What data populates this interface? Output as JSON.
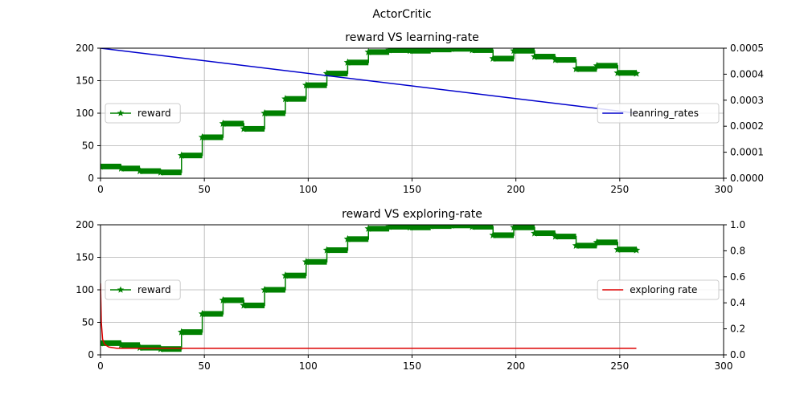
{
  "figure": {
    "suptitle": "ActorCritic"
  },
  "chart_data": [
    {
      "type": "line",
      "title": "reward VS learning-rate",
      "xlabel": "",
      "ylabel": "",
      "xlim": [
        0,
        300
      ],
      "ylim": [
        0,
        200
      ],
      "y2lim": [
        0,
        0.0005
      ],
      "xticks": [
        "0",
        "50",
        "100",
        "150",
        "200",
        "250",
        "300"
      ],
      "yticks": [
        "0",
        "50",
        "100",
        "150",
        "200"
      ],
      "y2ticks": [
        "0.0000",
        "0.0001",
        "0.0002",
        "0.0003",
        "0.0004",
        "0.0005"
      ],
      "grid": true,
      "series": [
        {
          "name": "reward",
          "axis": "left",
          "color": "#008000",
          "marker": "star",
          "steps": [
            [
              0,
              18
            ],
            [
              10,
              15
            ],
            [
              19,
              11
            ],
            [
              29,
              9
            ],
            [
              39,
              35
            ],
            [
              49,
              63
            ],
            [
              59,
              84
            ],
            [
              69,
              76
            ],
            [
              79,
              100
            ],
            [
              89,
              122
            ],
            [
              99,
              143
            ],
            [
              109,
              161
            ],
            [
              119,
              178
            ],
            [
              129,
              194
            ],
            [
              139,
              197
            ],
            [
              149,
              196
            ],
            [
              159,
              198
            ],
            [
              169,
              199
            ],
            [
              179,
              197
            ],
            [
              189,
              184
            ],
            [
              199,
              196
            ],
            [
              209,
              187
            ],
            [
              219,
              182
            ],
            [
              229,
              168
            ],
            [
              239,
              173
            ],
            [
              249,
              162
            ],
            [
              258,
              161
            ]
          ]
        },
        {
          "name": "leanring_rates",
          "axis": "right",
          "color": "#0000cc",
          "x": [
            0,
            258
          ],
          "y": [
            0.0005,
            0.00025
          ]
        }
      ],
      "legends": [
        {
          "placement": "center-left",
          "entries": [
            "reward"
          ]
        },
        {
          "placement": "center-right",
          "entries": [
            "leanring_rates"
          ]
        }
      ]
    },
    {
      "type": "line",
      "title": "reward VS exploring-rate",
      "xlabel": "",
      "ylabel": "",
      "xlim": [
        0,
        300
      ],
      "ylim": [
        0,
        200
      ],
      "y2lim": [
        0,
        1.0
      ],
      "xticks": [
        "0",
        "50",
        "100",
        "150",
        "200",
        "250",
        "300"
      ],
      "yticks": [
        "0",
        "50",
        "100",
        "150",
        "200"
      ],
      "y2ticks": [
        "0.0",
        "0.2",
        "0.4",
        "0.6",
        "0.8",
        "1.0"
      ],
      "grid": true,
      "series": [
        {
          "name": "reward",
          "axis": "left",
          "color": "#008000",
          "marker": "star",
          "steps": [
            [
              0,
              18
            ],
            [
              10,
              15
            ],
            [
              19,
              11
            ],
            [
              29,
              9
            ],
            [
              39,
              35
            ],
            [
              49,
              63
            ],
            [
              59,
              84
            ],
            [
              69,
              76
            ],
            [
              79,
              100
            ],
            [
              89,
              122
            ],
            [
              99,
              143
            ],
            [
              109,
              161
            ],
            [
              119,
              178
            ],
            [
              129,
              194
            ],
            [
              139,
              197
            ],
            [
              149,
              196
            ],
            [
              159,
              198
            ],
            [
              169,
              199
            ],
            [
              179,
              197
            ],
            [
              189,
              184
            ],
            [
              199,
              196
            ],
            [
              209,
              187
            ],
            [
              219,
              182
            ],
            [
              229,
              168
            ],
            [
              239,
              173
            ],
            [
              249,
              162
            ],
            [
              258,
              161
            ]
          ]
        },
        {
          "name": "exploring rate",
          "axis": "right",
          "color": "#dd0000",
          "x": [
            0,
            0.4,
            1,
            2,
            4,
            8,
            258
          ],
          "y": [
            0.55,
            0.25,
            0.12,
            0.08,
            0.06,
            0.05,
            0.05
          ]
        }
      ],
      "legends": [
        {
          "placement": "center-left",
          "entries": [
            "reward"
          ]
        },
        {
          "placement": "center-right",
          "entries": [
            "exploring rate"
          ]
        }
      ]
    }
  ]
}
